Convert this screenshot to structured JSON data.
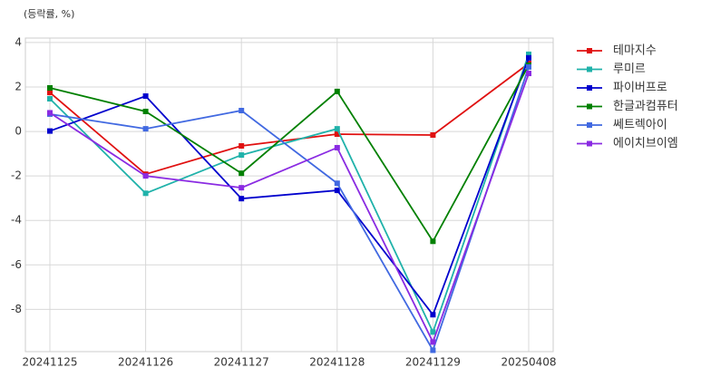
{
  "chart_data": {
    "type": "line",
    "title": "(등락률, %)",
    "categories": [
      "20241125",
      "20241126",
      "20241127",
      "20241128",
      "20241129",
      "20250408"
    ],
    "series": [
      {
        "name": "테마지수",
        "color": "#e01010",
        "values": [
          1.75,
          -1.92,
          -0.65,
          -0.12,
          -0.16,
          3.06
        ]
      },
      {
        "name": "루미르",
        "color": "#20b2aa",
        "values": [
          1.47,
          -2.78,
          -1.06,
          0.12,
          -9.02,
          3.47
        ]
      },
      {
        "name": "파이버프로",
        "color": "#0000cd",
        "values": [
          0.02,
          1.59,
          -3.02,
          -2.65,
          -8.24,
          3.31
        ]
      },
      {
        "name": "한글과컴퓨터",
        "color": "#008000",
        "values": [
          1.96,
          0.9,
          -1.88,
          1.8,
          -4.94,
          2.98
        ]
      },
      {
        "name": "쎄트렉아이",
        "color": "#4169e1",
        "values": [
          0.78,
          0.12,
          0.94,
          -2.33,
          -9.84,
          2.9
        ]
      },
      {
        "name": "에이치브이엠",
        "color": "#8a2be2",
        "values": [
          0.84,
          -2.0,
          -2.53,
          -0.73,
          -9.47,
          2.61
        ]
      }
    ],
    "ylim": [
      -9.9,
      4.2
    ],
    "yticks": [
      -8,
      -6,
      -4,
      -2,
      0,
      2,
      4
    ],
    "grid": true,
    "legend": "outside-upper-right"
  }
}
